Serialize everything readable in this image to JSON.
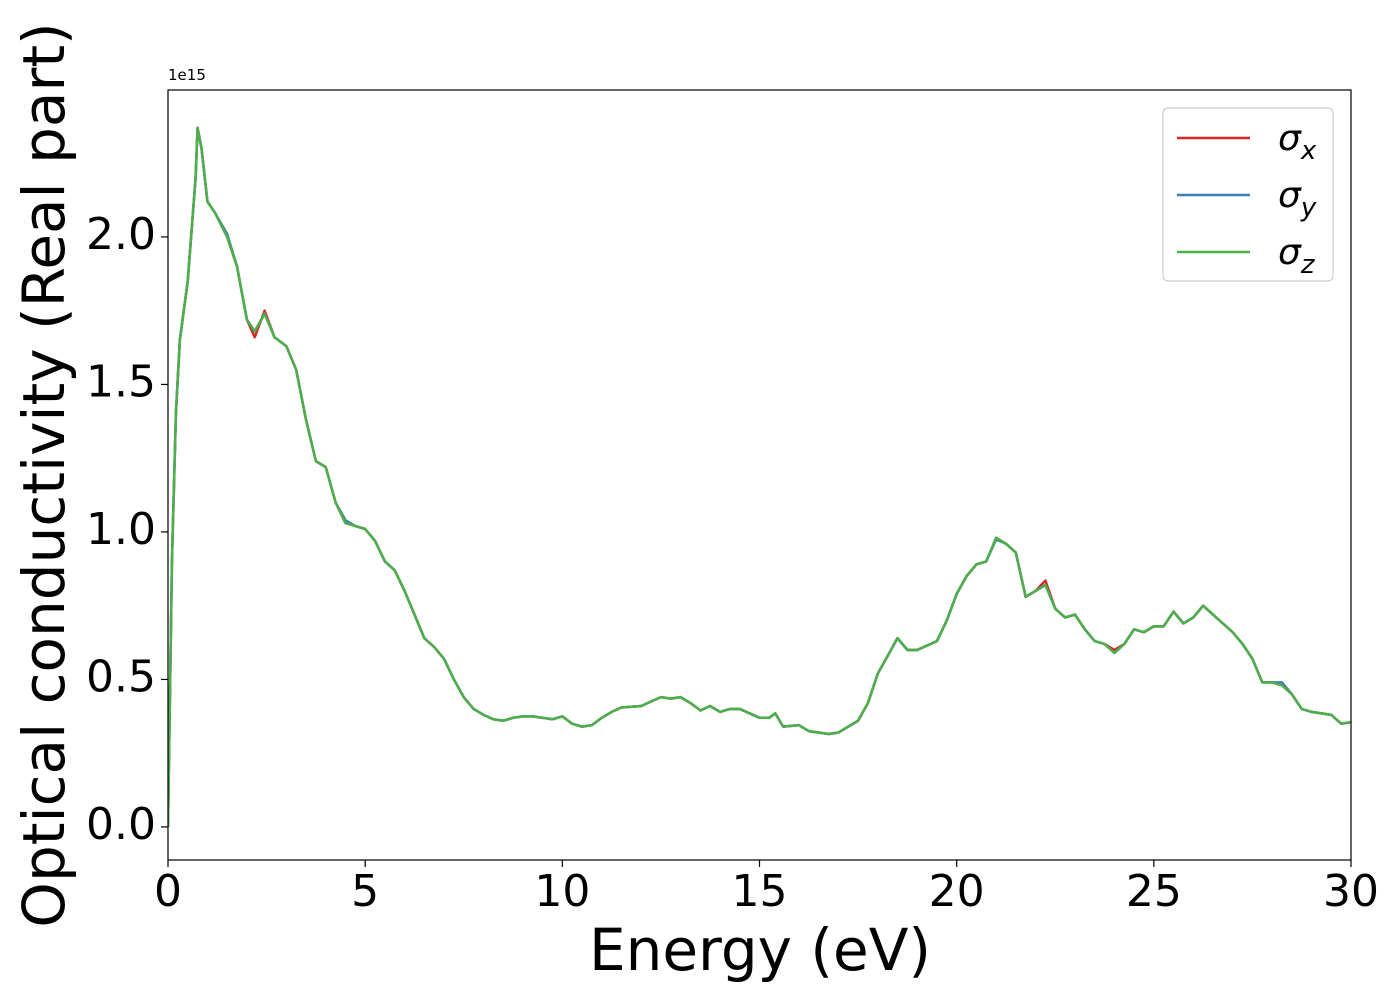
{
  "chart_data": {
    "type": "line",
    "xlabel": "Energy (eV)",
    "ylabel": "Optical conductivity (Real part)",
    "y_offset_label": "1e15",
    "xlim": [
      0,
      30
    ],
    "ylim": [
      -0.112,
      2.498
    ],
    "xticks": [
      0,
      5,
      10,
      15,
      20,
      25,
      30
    ],
    "yticks": [
      {
        "value": 0,
        "label": "0.0"
      },
      0.5,
      {
        "value": 1,
        "label": "1.0"
      },
      1.5,
      {
        "value": 2,
        "label": "2.0"
      }
    ],
    "grid": false,
    "legend": "upper right",
    "x": [
      0,
      0.1,
      0.2,
      0.3,
      0.5,
      0.7,
      0.75,
      0.85,
      1,
      1.2,
      1.5,
      1.75,
      2,
      2.2,
      2.45,
      2.7,
      3,
      3.25,
      3.5,
      3.75,
      4,
      4.25,
      4.5,
      4.75,
      5,
      5.25,
      5.5,
      5.75,
      6,
      6.25,
      6.5,
      6.75,
      7,
      7.25,
      7.5,
      7.75,
      8,
      8.25,
      8.5,
      8.75,
      9,
      9.25,
      9.5,
      9.75,
      10,
      10.25,
      10.5,
      10.75,
      11,
      11.25,
      11.5,
      12,
      12.5,
      12.75,
      13,
      13.25,
      13.5,
      13.75,
      14,
      14.25,
      14.5,
      15,
      15.25,
      15.4,
      15.6,
      16,
      16.25,
      16.75,
      17,
      17.5,
      17.75,
      18,
      18.25,
      18.5,
      18.75,
      19,
      19.5,
      19.75,
      20,
      20.25,
      20.5,
      20.75,
      21,
      21.25,
      21.5,
      21.75,
      22,
      22.25,
      22.5,
      22.75,
      23,
      23.25,
      23.5,
      23.75,
      24,
      24.25,
      24.5,
      24.75,
      25,
      25.25,
      25.5,
      25.75,
      26,
      26.25,
      26.5,
      27,
      27.25,
      27.5,
      27.75,
      28,
      28.25,
      28.5,
      28.75,
      29,
      29.5,
      29.75,
      30
    ],
    "series": [
      {
        "name": "σx",
        "color": "#d62728",
        "values": [
          0,
          0.9,
          1.4,
          1.65,
          1.85,
          2.2,
          2.37,
          2.3,
          2.12,
          2.08,
          2.0,
          1.9,
          1.72,
          1.66,
          1.75,
          1.66,
          1.63,
          1.55,
          1.38,
          1.24,
          1.22,
          1.1,
          1.03,
          1.02,
          1.01,
          0.97,
          0.9,
          0.87,
          0.8,
          0.72,
          0.64,
          0.61,
          0.57,
          0.5,
          0.44,
          0.4,
          0.38,
          0.365,
          0.36,
          0.37,
          0.375,
          0.375,
          0.37,
          0.365,
          0.375,
          0.35,
          0.34,
          0.345,
          0.37,
          0.39,
          0.405,
          0.41,
          0.44,
          0.435,
          0.44,
          0.42,
          0.395,
          0.41,
          0.39,
          0.4,
          0.4,
          0.37,
          0.37,
          0.385,
          0.34,
          0.345,
          0.325,
          0.315,
          0.32,
          0.36,
          0.42,
          0.52,
          0.58,
          0.64,
          0.6,
          0.6,
          0.63,
          0.7,
          0.79,
          0.85,
          0.89,
          0.9,
          0.98,
          0.96,
          0.93,
          0.78,
          0.8,
          0.835,
          0.74,
          0.71,
          0.72,
          0.67,
          0.63,
          0.62,
          0.6,
          0.62,
          0.67,
          0.66,
          0.68,
          0.68,
          0.73,
          0.69,
          0.71,
          0.75,
          0.72,
          0.66,
          0.62,
          0.57,
          0.49,
          0.49,
          0.48,
          0.45,
          0.4,
          0.39,
          0.38,
          0.35,
          0.355
        ]
      },
      {
        "name": "σy",
        "color": "#3a7fb8",
        "values": [
          0,
          0.9,
          1.4,
          1.65,
          1.85,
          2.2,
          2.37,
          2.3,
          2.12,
          2.08,
          2.01,
          1.9,
          1.72,
          1.68,
          1.74,
          1.66,
          1.63,
          1.55,
          1.38,
          1.24,
          1.22,
          1.1,
          1.04,
          1.02,
          1.01,
          0.97,
          0.9,
          0.87,
          0.8,
          0.72,
          0.64,
          0.61,
          0.57,
          0.5,
          0.44,
          0.4,
          0.38,
          0.365,
          0.36,
          0.37,
          0.375,
          0.375,
          0.37,
          0.365,
          0.375,
          0.35,
          0.34,
          0.345,
          0.37,
          0.39,
          0.405,
          0.41,
          0.44,
          0.435,
          0.44,
          0.42,
          0.395,
          0.41,
          0.39,
          0.4,
          0.4,
          0.37,
          0.37,
          0.385,
          0.34,
          0.345,
          0.325,
          0.315,
          0.32,
          0.36,
          0.42,
          0.52,
          0.58,
          0.64,
          0.6,
          0.6,
          0.63,
          0.7,
          0.79,
          0.85,
          0.89,
          0.9,
          0.975,
          0.96,
          0.93,
          0.78,
          0.8,
          0.82,
          0.74,
          0.71,
          0.72,
          0.67,
          0.63,
          0.62,
          0.59,
          0.62,
          0.67,
          0.66,
          0.68,
          0.68,
          0.73,
          0.69,
          0.71,
          0.75,
          0.72,
          0.66,
          0.62,
          0.57,
          0.49,
          0.49,
          0.49,
          0.45,
          0.4,
          0.39,
          0.38,
          0.35,
          0.355
        ]
      },
      {
        "name": "σz",
        "color": "#4daf4a",
        "values": [
          0,
          0.9,
          1.4,
          1.65,
          1.85,
          2.2,
          2.37,
          2.3,
          2.12,
          2.08,
          2.0,
          1.9,
          1.72,
          1.68,
          1.74,
          1.66,
          1.63,
          1.55,
          1.38,
          1.24,
          1.22,
          1.1,
          1.03,
          1.02,
          1.01,
          0.97,
          0.9,
          0.87,
          0.8,
          0.72,
          0.64,
          0.61,
          0.57,
          0.5,
          0.44,
          0.4,
          0.38,
          0.365,
          0.36,
          0.37,
          0.375,
          0.375,
          0.37,
          0.365,
          0.375,
          0.35,
          0.34,
          0.345,
          0.37,
          0.39,
          0.405,
          0.41,
          0.44,
          0.435,
          0.44,
          0.42,
          0.395,
          0.41,
          0.39,
          0.4,
          0.4,
          0.37,
          0.37,
          0.385,
          0.34,
          0.345,
          0.325,
          0.315,
          0.32,
          0.36,
          0.42,
          0.52,
          0.58,
          0.64,
          0.6,
          0.6,
          0.63,
          0.7,
          0.79,
          0.85,
          0.89,
          0.9,
          0.98,
          0.96,
          0.93,
          0.78,
          0.8,
          0.82,
          0.74,
          0.71,
          0.72,
          0.67,
          0.63,
          0.62,
          0.59,
          0.62,
          0.67,
          0.66,
          0.68,
          0.68,
          0.73,
          0.69,
          0.71,
          0.75,
          0.72,
          0.66,
          0.62,
          0.57,
          0.49,
          0.49,
          0.48,
          0.45,
          0.4,
          0.39,
          0.38,
          0.35,
          0.355
        ]
      }
    ]
  }
}
